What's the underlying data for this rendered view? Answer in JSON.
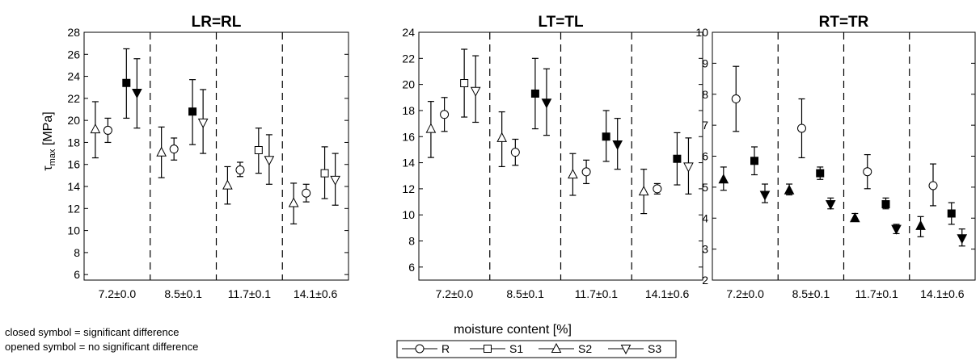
{
  "figure": {
    "xlabel": "moisture content [%]",
    "ylabel_main": "τ",
    "ylabel_sub": "max",
    "ylabel_unit": " [MPa]",
    "legend": [
      {
        "name": "R",
        "marker": "circle"
      },
      {
        "name": "S1",
        "marker": "square"
      },
      {
        "name": "S2",
        "marker": "triangle-up"
      },
      {
        "name": "S3",
        "marker": "triangle-down"
      }
    ],
    "notes": [
      "closed symbol = significant difference",
      "opened symbol = no significant difference"
    ],
    "colors": {
      "ink": "#000000",
      "open_fill": "#ffffff",
      "closed_fill": "#000000",
      "background": "#ffffff"
    }
  },
  "chart_data": [
    {
      "type": "scatter",
      "title": "LR=RL",
      "categories": [
        "7.2±0.0",
        "8.5±0.1",
        "11.7±0.1",
        "14.1±0.6"
      ],
      "ylim": [
        5.5,
        28
      ],
      "yticks": [
        6,
        8,
        10,
        12,
        14,
        16,
        18,
        20,
        22,
        24,
        26,
        28
      ],
      "series": [
        {
          "name": "S2",
          "marker": "triangle-up",
          "filled": [
            false,
            false,
            false,
            false
          ],
          "values": [
            19.2,
            17.1,
            14.1,
            12.5
          ],
          "err_low": [
            16.6,
            14.8,
            12.4,
            10.6
          ],
          "err_high": [
            21.7,
            19.4,
            15.8,
            14.3
          ]
        },
        {
          "name": "R",
          "marker": "circle",
          "filled": [
            false,
            false,
            false,
            false
          ],
          "values": [
            19.1,
            17.4,
            15.5,
            13.4
          ],
          "err_low": [
            18.0,
            16.4,
            14.9,
            12.6
          ],
          "err_high": [
            20.2,
            18.4,
            16.2,
            14.2
          ]
        },
        {
          "name": "S1",
          "marker": "square",
          "filled": [
            true,
            true,
            false,
            false
          ],
          "values": [
            23.4,
            20.8,
            17.3,
            15.2
          ],
          "err_low": [
            20.2,
            17.8,
            15.2,
            12.9
          ],
          "err_high": [
            26.5,
            23.7,
            19.3,
            17.6
          ]
        },
        {
          "name": "S3",
          "marker": "triangle-down",
          "filled": [
            true,
            false,
            false,
            false
          ],
          "values": [
            22.5,
            19.8,
            16.4,
            14.6
          ],
          "err_low": [
            19.3,
            17.0,
            14.2,
            12.3
          ],
          "err_high": [
            25.6,
            22.8,
            18.7,
            17.0
          ]
        }
      ]
    },
    {
      "type": "scatter",
      "title": "LT=TL",
      "categories": [
        "7.2±0.0",
        "8.5±0.1",
        "11.7±0.1",
        "14.1±0.6"
      ],
      "ylim": [
        5,
        24
      ],
      "yticks": [
        6,
        8,
        10,
        12,
        14,
        16,
        18,
        20,
        22,
        24
      ],
      "series": [
        {
          "name": "S2",
          "marker": "triangle-up",
          "filled": [
            false,
            false,
            false,
            false
          ],
          "values": [
            16.6,
            15.9,
            13.1,
            11.8
          ],
          "err_low": [
            14.4,
            13.7,
            11.5,
            10.1
          ],
          "err_high": [
            18.7,
            17.9,
            14.7,
            13.5
          ]
        },
        {
          "name": "R",
          "marker": "circle",
          "filled": [
            false,
            false,
            false,
            false
          ],
          "values": [
            17.7,
            14.8,
            13.3,
            12.0
          ],
          "err_low": [
            16.4,
            13.8,
            12.4,
            11.6
          ],
          "err_high": [
            19.0,
            15.8,
            14.2,
            12.4
          ]
        },
        {
          "name": "S1",
          "marker": "square",
          "filled": [
            false,
            true,
            true,
            true
          ],
          "values": [
            20.1,
            19.3,
            16.0,
            14.3
          ],
          "err_low": [
            17.5,
            16.6,
            14.1,
            12.3
          ],
          "err_high": [
            22.7,
            22.0,
            18.0,
            16.3
          ]
        },
        {
          "name": "S3",
          "marker": "triangle-down",
          "filled": [
            false,
            true,
            true,
            false
          ],
          "values": [
            19.5,
            18.6,
            15.4,
            13.7
          ],
          "err_low": [
            17.1,
            16.1,
            13.5,
            11.6
          ],
          "err_high": [
            22.2,
            21.2,
            17.4,
            15.9
          ]
        }
      ]
    },
    {
      "type": "scatter",
      "title": "RT=TR",
      "categories": [
        "7.2±0.0",
        "8.5±0.1",
        "11.7±0.1",
        "14.1±0.6"
      ],
      "ylim": [
        2,
        10
      ],
      "yticks": [
        2,
        3,
        4,
        5,
        6,
        7,
        8,
        9,
        10
      ],
      "series": [
        {
          "name": "S2",
          "marker": "triangle-up",
          "filled": [
            true,
            true,
            true,
            true
          ],
          "values": [
            5.25,
            4.9,
            4.0,
            3.75
          ],
          "err_low": [
            4.9,
            4.75,
            3.9,
            3.4
          ],
          "err_high": [
            5.65,
            5.1,
            4.15,
            4.05
          ]
        },
        {
          "name": "R",
          "marker": "circle",
          "filled": [
            false,
            false,
            false,
            false
          ],
          "values": [
            7.85,
            6.9,
            5.5,
            5.05
          ],
          "err_low": [
            6.8,
            5.95,
            4.95,
            4.4
          ],
          "err_high": [
            8.9,
            7.85,
            6.05,
            5.75
          ]
        },
        {
          "name": "S1",
          "marker": "square",
          "filled": [
            true,
            true,
            true,
            true
          ],
          "values": [
            5.85,
            5.45,
            4.45,
            4.15
          ],
          "err_low": [
            5.4,
            5.25,
            4.3,
            3.8
          ],
          "err_high": [
            6.3,
            5.65,
            4.65,
            4.5
          ]
        },
        {
          "name": "S3",
          "marker": "triangle-down",
          "filled": [
            true,
            true,
            true,
            true
          ],
          "values": [
            4.75,
            4.45,
            3.65,
            3.35
          ],
          "err_low": [
            4.5,
            4.3,
            3.5,
            3.1
          ],
          "err_high": [
            5.1,
            4.65,
            3.8,
            3.65
          ]
        }
      ]
    }
  ]
}
